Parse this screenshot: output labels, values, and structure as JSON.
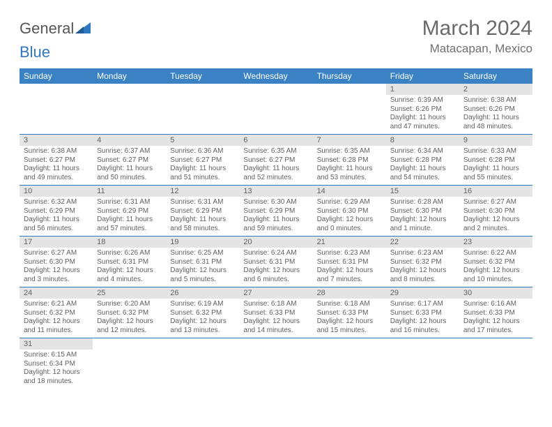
{
  "logo": {
    "part1": "General",
    "part2": "Blue"
  },
  "title": "March 2024",
  "location": "Matacapan, Mexico",
  "colors": {
    "header_bg": "#3a82c4",
    "daynum_bg": "#e4e4e4",
    "row_border": "#2f78bd",
    "text": "#606060",
    "logo_blue": "#2f78bd"
  },
  "weekdays": [
    "Sunday",
    "Monday",
    "Tuesday",
    "Wednesday",
    "Thursday",
    "Friday",
    "Saturday"
  ],
  "weeks": [
    [
      null,
      null,
      null,
      null,
      null,
      {
        "n": "1",
        "sr": "Sunrise: 6:39 AM",
        "ss": "Sunset: 6:26 PM",
        "d1": "Daylight: 11 hours",
        "d2": "and 47 minutes."
      },
      {
        "n": "2",
        "sr": "Sunrise: 6:38 AM",
        "ss": "Sunset: 6:26 PM",
        "d1": "Daylight: 11 hours",
        "d2": "and 48 minutes."
      }
    ],
    [
      {
        "n": "3",
        "sr": "Sunrise: 6:38 AM",
        "ss": "Sunset: 6:27 PM",
        "d1": "Daylight: 11 hours",
        "d2": "and 49 minutes."
      },
      {
        "n": "4",
        "sr": "Sunrise: 6:37 AM",
        "ss": "Sunset: 6:27 PM",
        "d1": "Daylight: 11 hours",
        "d2": "and 50 minutes."
      },
      {
        "n": "5",
        "sr": "Sunrise: 6:36 AM",
        "ss": "Sunset: 6:27 PM",
        "d1": "Daylight: 11 hours",
        "d2": "and 51 minutes."
      },
      {
        "n": "6",
        "sr": "Sunrise: 6:35 AM",
        "ss": "Sunset: 6:27 PM",
        "d1": "Daylight: 11 hours",
        "d2": "and 52 minutes."
      },
      {
        "n": "7",
        "sr": "Sunrise: 6:35 AM",
        "ss": "Sunset: 6:28 PM",
        "d1": "Daylight: 11 hours",
        "d2": "and 53 minutes."
      },
      {
        "n": "8",
        "sr": "Sunrise: 6:34 AM",
        "ss": "Sunset: 6:28 PM",
        "d1": "Daylight: 11 hours",
        "d2": "and 54 minutes."
      },
      {
        "n": "9",
        "sr": "Sunrise: 6:33 AM",
        "ss": "Sunset: 6:28 PM",
        "d1": "Daylight: 11 hours",
        "d2": "and 55 minutes."
      }
    ],
    [
      {
        "n": "10",
        "sr": "Sunrise: 6:32 AM",
        "ss": "Sunset: 6:29 PM",
        "d1": "Daylight: 11 hours",
        "d2": "and 56 minutes."
      },
      {
        "n": "11",
        "sr": "Sunrise: 6:31 AM",
        "ss": "Sunset: 6:29 PM",
        "d1": "Daylight: 11 hours",
        "d2": "and 57 minutes."
      },
      {
        "n": "12",
        "sr": "Sunrise: 6:31 AM",
        "ss": "Sunset: 6:29 PM",
        "d1": "Daylight: 11 hours",
        "d2": "and 58 minutes."
      },
      {
        "n": "13",
        "sr": "Sunrise: 6:30 AM",
        "ss": "Sunset: 6:29 PM",
        "d1": "Daylight: 11 hours",
        "d2": "and 59 minutes."
      },
      {
        "n": "14",
        "sr": "Sunrise: 6:29 AM",
        "ss": "Sunset: 6:30 PM",
        "d1": "Daylight: 12 hours",
        "d2": "and 0 minutes."
      },
      {
        "n": "15",
        "sr": "Sunrise: 6:28 AM",
        "ss": "Sunset: 6:30 PM",
        "d1": "Daylight: 12 hours",
        "d2": "and 1 minute."
      },
      {
        "n": "16",
        "sr": "Sunrise: 6:27 AM",
        "ss": "Sunset: 6:30 PM",
        "d1": "Daylight: 12 hours",
        "d2": "and 2 minutes."
      }
    ],
    [
      {
        "n": "17",
        "sr": "Sunrise: 6:27 AM",
        "ss": "Sunset: 6:30 PM",
        "d1": "Daylight: 12 hours",
        "d2": "and 3 minutes."
      },
      {
        "n": "18",
        "sr": "Sunrise: 6:26 AM",
        "ss": "Sunset: 6:31 PM",
        "d1": "Daylight: 12 hours",
        "d2": "and 4 minutes."
      },
      {
        "n": "19",
        "sr": "Sunrise: 6:25 AM",
        "ss": "Sunset: 6:31 PM",
        "d1": "Daylight: 12 hours",
        "d2": "and 5 minutes."
      },
      {
        "n": "20",
        "sr": "Sunrise: 6:24 AM",
        "ss": "Sunset: 6:31 PM",
        "d1": "Daylight: 12 hours",
        "d2": "and 6 minutes."
      },
      {
        "n": "21",
        "sr": "Sunrise: 6:23 AM",
        "ss": "Sunset: 6:31 PM",
        "d1": "Daylight: 12 hours",
        "d2": "and 7 minutes."
      },
      {
        "n": "22",
        "sr": "Sunrise: 6:23 AM",
        "ss": "Sunset: 6:32 PM",
        "d1": "Daylight: 12 hours",
        "d2": "and 8 minutes."
      },
      {
        "n": "23",
        "sr": "Sunrise: 6:22 AM",
        "ss": "Sunset: 6:32 PM",
        "d1": "Daylight: 12 hours",
        "d2": "and 10 minutes."
      }
    ],
    [
      {
        "n": "24",
        "sr": "Sunrise: 6:21 AM",
        "ss": "Sunset: 6:32 PM",
        "d1": "Daylight: 12 hours",
        "d2": "and 11 minutes."
      },
      {
        "n": "25",
        "sr": "Sunrise: 6:20 AM",
        "ss": "Sunset: 6:32 PM",
        "d1": "Daylight: 12 hours",
        "d2": "and 12 minutes."
      },
      {
        "n": "26",
        "sr": "Sunrise: 6:19 AM",
        "ss": "Sunset: 6:32 PM",
        "d1": "Daylight: 12 hours",
        "d2": "and 13 minutes."
      },
      {
        "n": "27",
        "sr": "Sunrise: 6:18 AM",
        "ss": "Sunset: 6:33 PM",
        "d1": "Daylight: 12 hours",
        "d2": "and 14 minutes."
      },
      {
        "n": "28",
        "sr": "Sunrise: 6:18 AM",
        "ss": "Sunset: 6:33 PM",
        "d1": "Daylight: 12 hours",
        "d2": "and 15 minutes."
      },
      {
        "n": "29",
        "sr": "Sunrise: 6:17 AM",
        "ss": "Sunset: 6:33 PM",
        "d1": "Daylight: 12 hours",
        "d2": "and 16 minutes."
      },
      {
        "n": "30",
        "sr": "Sunrise: 6:16 AM",
        "ss": "Sunset: 6:33 PM",
        "d1": "Daylight: 12 hours",
        "d2": "and 17 minutes."
      }
    ],
    [
      {
        "n": "31",
        "sr": "Sunrise: 6:15 AM",
        "ss": "Sunset: 6:34 PM",
        "d1": "Daylight: 12 hours",
        "d2": "and 18 minutes."
      },
      null,
      null,
      null,
      null,
      null,
      null
    ]
  ]
}
